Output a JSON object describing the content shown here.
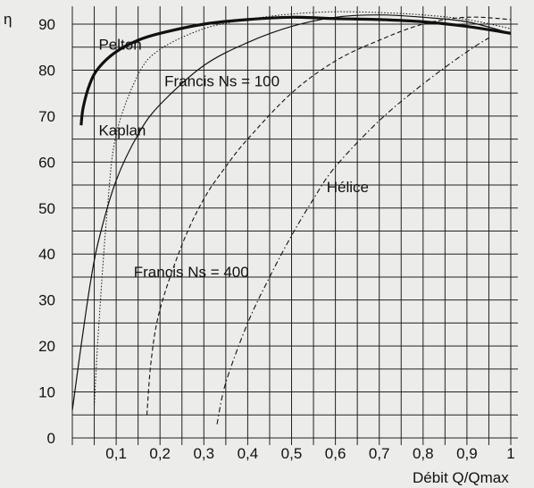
{
  "chart_data": {
    "type": "line",
    "ylabel": "η",
    "xlabel": "Débit Q/Qmax",
    "xlim": [
      0,
      1
    ],
    "ylim": [
      0,
      90
    ],
    "x_ticks": [
      "0,1",
      "0,2",
      "0,3",
      "0,4",
      "0,5",
      "0,6",
      "0,7",
      "0,8",
      "0,9",
      "1"
    ],
    "y_ticks": [
      "0",
      "10",
      "20",
      "30",
      "40",
      "50",
      "60",
      "70",
      "80",
      "90"
    ],
    "grid": true,
    "series": [
      {
        "name": "Pelton",
        "style": "bold",
        "x": [
          0.02,
          0.025,
          0.04,
          0.06,
          0.1,
          0.15,
          0.2,
          0.3,
          0.4,
          0.5,
          0.6,
          0.7,
          0.8,
          0.9,
          1.0
        ],
        "y": [
          68,
          72,
          77,
          80.5,
          84,
          86.5,
          88,
          90,
          91,
          91.5,
          91.2,
          91,
          90.5,
          89.5,
          88
        ]
      },
      {
        "name": "Kaplan",
        "style": "dotted",
        "x": [
          0.05,
          0.06,
          0.08,
          0.1,
          0.15,
          0.2,
          0.3,
          0.4,
          0.5,
          0.6,
          0.7,
          0.8,
          0.9,
          1.0
        ],
        "y": [
          7,
          24,
          50,
          66,
          79,
          84.5,
          89,
          91,
          92.2,
          92.7,
          92.5,
          92,
          91,
          89
        ]
      },
      {
        "name": "Francis Ns = 100",
        "style": "solid",
        "x": [
          0.0,
          0.02,
          0.04,
          0.06,
          0.1,
          0.15,
          0.2,
          0.3,
          0.4,
          0.5,
          0.6,
          0.7,
          0.8,
          0.9,
          1.0
        ],
        "y": [
          6,
          20,
          33,
          43,
          56,
          66,
          72.5,
          81,
          86,
          89.5,
          91.5,
          92,
          91.5,
          90.5,
          88
        ]
      },
      {
        "name": "Francis Ns = 400",
        "style": "dashed",
        "x": [
          0.17,
          0.18,
          0.2,
          0.25,
          0.3,
          0.35,
          0.4,
          0.5,
          0.6,
          0.7,
          0.8,
          0.9,
          1.0
        ],
        "y": [
          5,
          17,
          28,
          42,
          52,
          59,
          65,
          75,
          82,
          86.5,
          90,
          91.5,
          91
        ]
      },
      {
        "name": "Hélice",
        "style": "dash-dot",
        "x": [
          0.33,
          0.35,
          0.4,
          0.45,
          0.5,
          0.55,
          0.6,
          0.7,
          0.8,
          0.9,
          0.95
        ],
        "y": [
          3,
          12,
          25,
          35,
          44,
          52,
          59,
          69,
          77,
          84,
          87
        ]
      }
    ],
    "annotations": [
      {
        "text": "Pelton",
        "x": 0.06,
        "y": 84.5
      },
      {
        "text": "Francis Ns = 100",
        "x": 0.21,
        "y": 76.5
      },
      {
        "text": "Kaplan",
        "x": 0.06,
        "y": 65.8
      },
      {
        "text": "Hélice",
        "x": 0.58,
        "y": 53.5
      },
      {
        "text": "Francis Ns = 400",
        "x": 0.14,
        "y": 35
      }
    ]
  }
}
